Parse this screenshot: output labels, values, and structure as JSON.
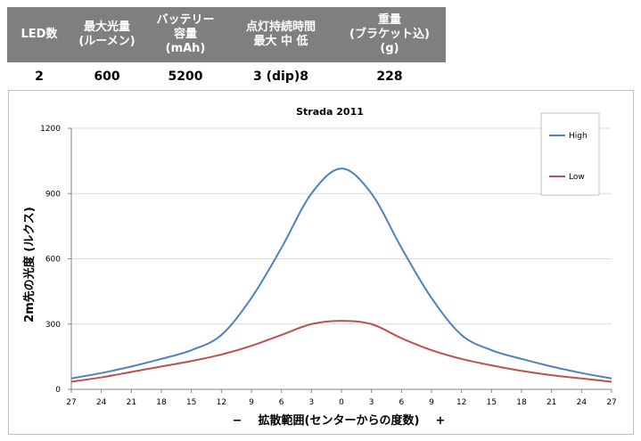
{
  "spec_table": {
    "headers": [
      "LED数",
      "最大光量\n(ルーメン)",
      "バッテリー\n容量\n(mAh)",
      "点灯持続時間\n最大  中  低",
      "重量\n(ブラケット込)\n(g)"
    ],
    "values": [
      "2",
      "600",
      "5200",
      "3   (dip)8",
      "228"
    ]
  },
  "chart_data": {
    "type": "line",
    "title": "Strada 2011",
    "xlabel": "−    拡散範囲(センターからの度数)    +",
    "ylabel": "2m先の光度 (ルクス)",
    "categories": [
      "27",
      "24",
      "21",
      "18",
      "15",
      "12",
      "9",
      "6",
      "3",
      "0",
      "3",
      "6",
      "9",
      "12",
      "15",
      "18",
      "21",
      "24",
      "27"
    ],
    "x": [
      -27,
      -24,
      -21,
      -18,
      -15,
      -12,
      -9,
      -6,
      -3,
      0,
      3,
      6,
      9,
      12,
      15,
      18,
      21,
      24,
      27
    ],
    "ylim": [
      0,
      1200
    ],
    "yticks": [
      0,
      300,
      600,
      900,
      1200
    ],
    "grid": true,
    "legend": "top-right",
    "series": [
      {
        "name": "High",
        "color": "#4f81bd",
        "values": [
          50,
          75,
          105,
          140,
          180,
          250,
          420,
          650,
          900,
          1015,
          900,
          650,
          420,
          250,
          180,
          140,
          105,
          75,
          50
        ]
      },
      {
        "name": "Low",
        "color": "#c0504d",
        "values": [
          35,
          55,
          80,
          105,
          130,
          160,
          200,
          250,
          300,
          315,
          300,
          235,
          180,
          140,
          110,
          85,
          65,
          50,
          35
        ]
      }
    ]
  }
}
